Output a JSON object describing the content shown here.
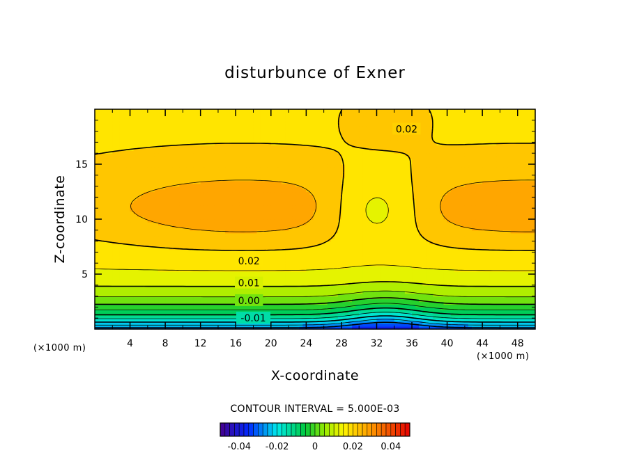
{
  "chart_data": {
    "type": "contour",
    "title": "disturbunce of Exner",
    "xlabel": "X-coordinate",
    "ylabel": "Z-coordinate",
    "x_unit_left": "(×1000 m)",
    "x_unit_right": "(×1000 m)",
    "xlim": [
      0,
      50
    ],
    "ylim": [
      0,
      20
    ],
    "xticks": [
      4,
      8,
      12,
      16,
      20,
      24,
      28,
      32,
      36,
      40,
      44,
      48
    ],
    "yticks": [
      5,
      10,
      15
    ],
    "contour_interval_text": "CONTOUR INTERVAL = 5.000E-03",
    "contour_labels": [
      {
        "text": "0.02",
        "x": 35.4,
        "y": 18.2
      },
      {
        "text": "0.02",
        "x": 17.5,
        "y": 6.2
      },
      {
        "text": "0.01",
        "x": 17.5,
        "y": 4.2
      },
      {
        "text": "0.00",
        "x": 17.5,
        "y": 2.6
      },
      {
        "text": "-0.01",
        "x": 18.0,
        "y": 1.0
      }
    ],
    "field_max_centers": [
      {
        "x": 16,
        "z": 11
      },
      {
        "x": 50,
        "z": 11
      }
    ],
    "field_min_center": {
      "x": 33,
      "z": 0
    },
    "colorbar": {
      "range": [
        -0.05,
        0.05
      ],
      "ticks": [
        "-0.04",
        "-0.02",
        "0",
        "0.02",
        "0.04"
      ],
      "tick_values": [
        -0.04,
        -0.02,
        0,
        0.02,
        0.04
      ]
    }
  }
}
